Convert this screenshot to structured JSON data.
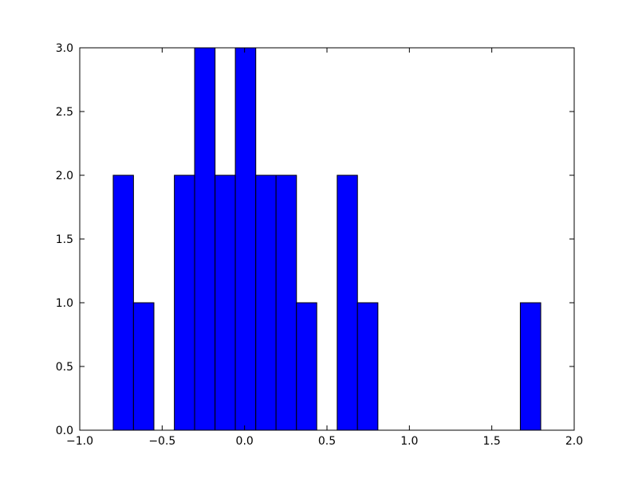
{
  "chart_data": {
    "type": "histogram",
    "bins": [
      -0.797,
      -0.674,
      -0.55,
      -0.426,
      -0.303,
      -0.179,
      -0.056,
      0.068,
      0.191,
      0.315,
      0.438,
      0.562,
      0.685,
      0.809,
      0.932,
      1.056,
      1.179,
      1.303,
      1.426,
      1.55,
      1.673,
      1.797
    ],
    "counts": [
      2,
      1,
      0,
      2,
      3,
      2,
      3,
      2,
      2,
      1,
      0,
      2,
      1,
      0,
      0,
      0,
      0,
      0,
      0,
      0,
      1
    ],
    "color": "#0000ff",
    "xlim": [
      -1.0,
      2.0
    ],
    "xticks": [
      {
        "value": -1.0,
        "label": "−1.0"
      },
      {
        "value": -0.5,
        "label": "−0.5"
      },
      {
        "value": 0,
        "label": "0.0"
      },
      {
        "value": 0.5,
        "label": "0.5"
      },
      {
        "value": 1.0,
        "label": "1.0"
      },
      {
        "value": 1.5,
        "label": "1.5"
      },
      {
        "value": 2.0,
        "label": "2.0"
      }
    ],
    "ylim": [
      0,
      3.0
    ],
    "yticks": [
      {
        "value": 0,
        "label": "0.0"
      },
      {
        "value": 0.5,
        "label": "0.5"
      },
      {
        "value": 1.0,
        "label": "1.0"
      },
      {
        "value": 1.5,
        "label": "1.5"
      },
      {
        "value": 2.0,
        "label": "2.0"
      },
      {
        "value": 2.5,
        "label": "2.5"
      },
      {
        "value": 3.0,
        "label": "3.0"
      }
    ]
  }
}
